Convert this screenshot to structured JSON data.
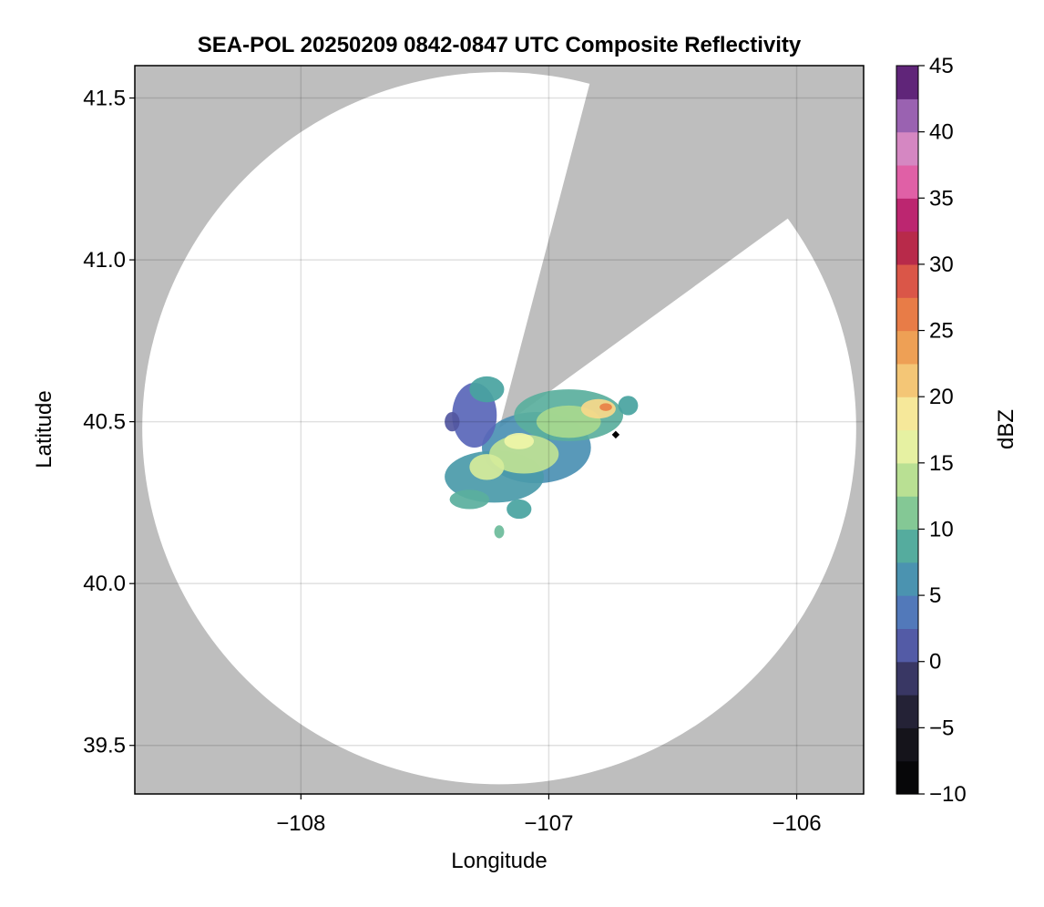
{
  "chart_data": {
    "type": "heatmap",
    "title": "SEA-POL 20250209 0842-0847 UTC Composite Reflectivity",
    "xlabel": "Longitude",
    "ylabel": "Latitude",
    "xlim": [
      -108.67,
      -105.73
    ],
    "ylim": [
      39.35,
      41.6
    ],
    "xticks": [
      -108,
      -107,
      -106
    ],
    "xtick_labels": [
      "−108",
      "−107",
      "−106"
    ],
    "yticks": [
      39.5,
      40.0,
      40.5,
      41.0,
      41.5
    ],
    "ytick_labels": [
      "39.5",
      "40.0",
      "40.5",
      "41.0",
      "41.5"
    ],
    "grid": true,
    "no_data_color": "#bebebe",
    "radar": {
      "center_lon": -107.2,
      "center_lat": 40.48,
      "coverage_radius_lon": 1.44,
      "coverage_radius_lat": 1.1,
      "blocked_sectors": [
        {
          "from_lon": -106.84,
          "from_lat": 41.53,
          "to_lon": -106.05,
          "to_lat": 41.12
        }
      ]
    },
    "site_marker": {
      "lon": -106.73,
      "lat": 40.46,
      "color": "#000000"
    },
    "echoes": [
      {
        "lon": -107.05,
        "lat": 40.42,
        "rlon": 0.22,
        "rlat": 0.11,
        "dbz": 6
      },
      {
        "lon": -106.92,
        "lat": 40.52,
        "rlon": 0.22,
        "rlat": 0.08,
        "dbz": 9
      },
      {
        "lon": -107.22,
        "lat": 40.33,
        "rlon": 0.2,
        "rlat": 0.08,
        "dbz": 7
      },
      {
        "lon": -107.3,
        "lat": 40.52,
        "rlon": 0.09,
        "rlat": 0.1,
        "dbz": 2
      },
      {
        "lon": -107.25,
        "lat": 40.6,
        "rlon": 0.07,
        "rlat": 0.04,
        "dbz": 8
      },
      {
        "lon": -107.1,
        "lat": 40.4,
        "rlon": 0.14,
        "rlat": 0.06,
        "dbz": 14
      },
      {
        "lon": -106.92,
        "lat": 40.5,
        "rlon": 0.13,
        "rlat": 0.05,
        "dbz": 13
      },
      {
        "lon": -107.25,
        "lat": 40.36,
        "rlon": 0.07,
        "rlat": 0.04,
        "dbz": 15
      },
      {
        "lon": -106.8,
        "lat": 40.54,
        "rlon": 0.07,
        "rlat": 0.03,
        "dbz": 20
      },
      {
        "lon": -106.77,
        "lat": 40.545,
        "rlon": 0.025,
        "rlat": 0.012,
        "dbz": 26
      },
      {
        "lon": -107.12,
        "lat": 40.44,
        "rlon": 0.06,
        "rlat": 0.025,
        "dbz": 17
      },
      {
        "lon": -107.32,
        "lat": 40.26,
        "rlon": 0.08,
        "rlat": 0.03,
        "dbz": 9
      },
      {
        "lon": -107.12,
        "lat": 40.23,
        "rlon": 0.05,
        "rlat": 0.03,
        "dbz": 8
      },
      {
        "lon": -107.2,
        "lat": 40.16,
        "rlon": 0.02,
        "rlat": 0.02,
        "dbz": 10
      },
      {
        "lon": -106.68,
        "lat": 40.55,
        "rlon": 0.04,
        "rlat": 0.03,
        "dbz": 8
      },
      {
        "lon": -107.39,
        "lat": 40.5,
        "rlon": 0.03,
        "rlat": 0.03,
        "dbz": 1
      }
    ],
    "colorbar": {
      "label": "dBZ",
      "min": -10,
      "max": 45,
      "step": 2.5,
      "ticks": [
        -10,
        -5,
        0,
        5,
        10,
        15,
        20,
        25,
        30,
        35,
        40,
        45
      ],
      "tick_labels": [
        "−10",
        "−5",
        "0",
        "5",
        "10",
        "15",
        "20",
        "25",
        "30",
        "35",
        "40",
        "45"
      ],
      "stops": [
        {
          "v": -10,
          "c": "#000000"
        },
        {
          "v": -5,
          "c": "#1c1a24"
        },
        {
          "v": -2,
          "c": "#2e2d4e"
        },
        {
          "v": 0,
          "c": "#4a4889"
        },
        {
          "v": 2,
          "c": "#5966b8"
        },
        {
          "v": 5,
          "c": "#4d87bc"
        },
        {
          "v": 8,
          "c": "#48a3a0"
        },
        {
          "v": 10,
          "c": "#6bbb9a"
        },
        {
          "v": 13,
          "c": "#a8d98e"
        },
        {
          "v": 15,
          "c": "#d6eb9a"
        },
        {
          "v": 17.5,
          "c": "#f5f7aa"
        },
        {
          "v": 20,
          "c": "#f7d98a"
        },
        {
          "v": 22.5,
          "c": "#f0b262"
        },
        {
          "v": 25,
          "c": "#eb8e48"
        },
        {
          "v": 27.5,
          "c": "#e46a45"
        },
        {
          "v": 30,
          "c": "#d0414a"
        },
        {
          "v": 32.5,
          "c": "#a0124a"
        },
        {
          "v": 34,
          "c": "#c22a78"
        },
        {
          "v": 36,
          "c": "#df5aa2"
        },
        {
          "v": 38,
          "c": "#e88ac0"
        },
        {
          "v": 40,
          "c": "#b583c4"
        },
        {
          "v": 42,
          "c": "#8a4ea6"
        },
        {
          "v": 44,
          "c": "#5a1f72"
        },
        {
          "v": 45,
          "c": "#3a0a4a"
        }
      ]
    }
  }
}
